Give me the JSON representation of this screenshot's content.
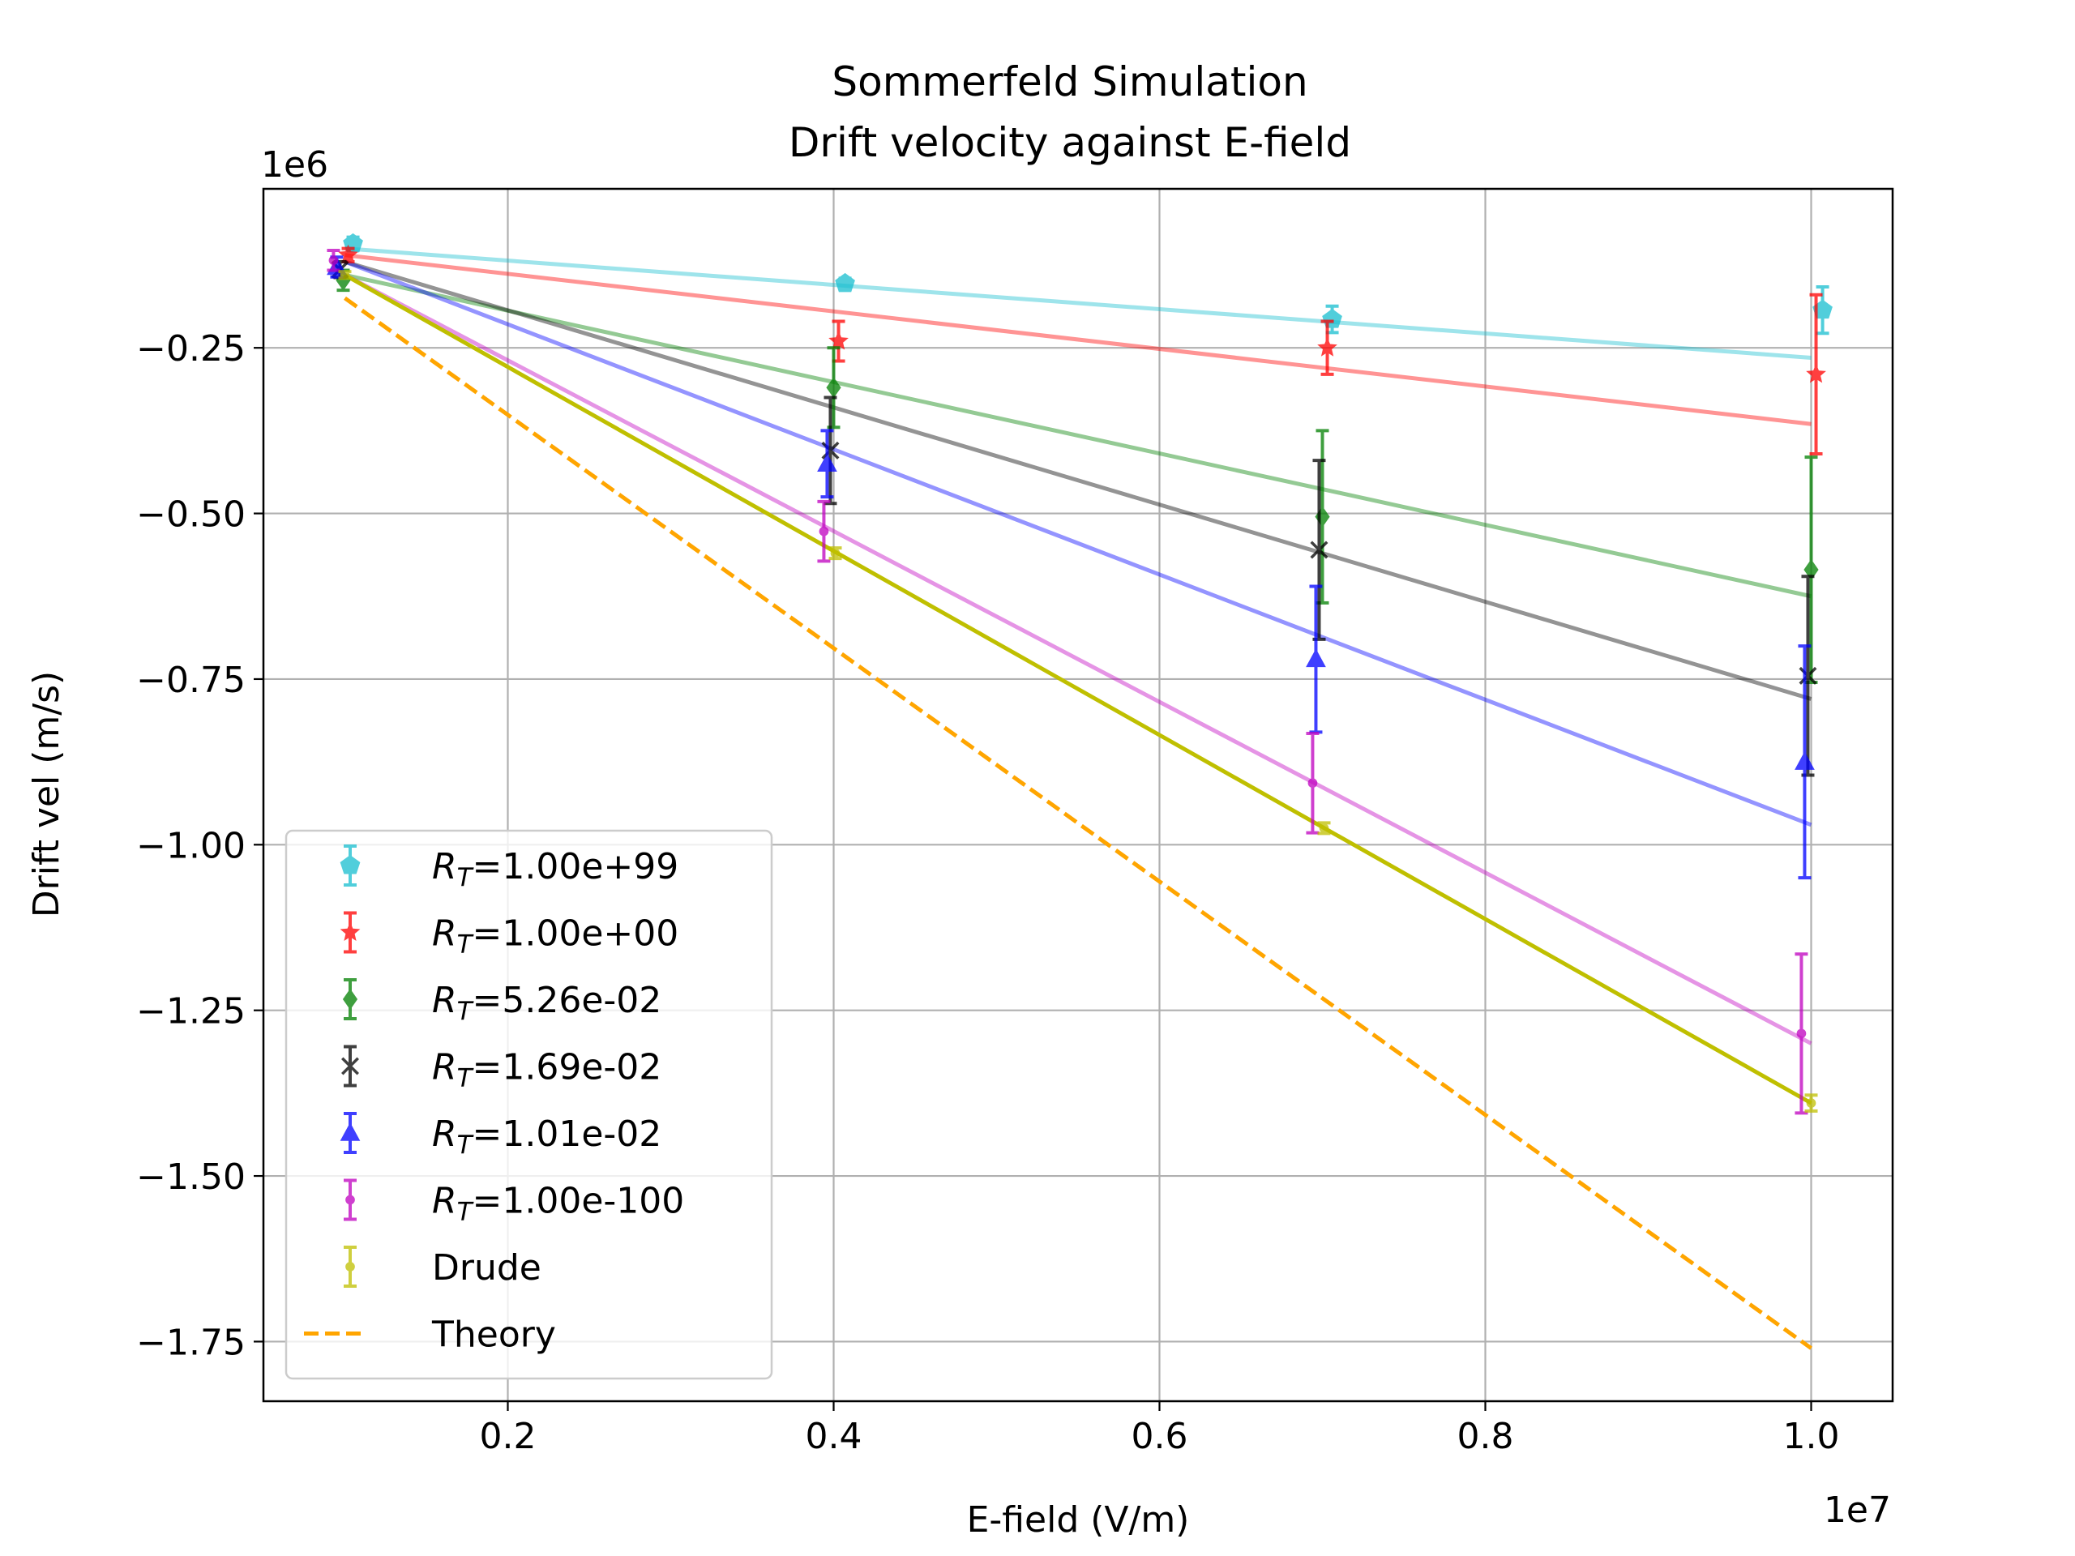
{
  "chart_data": {
    "type": "line",
    "title": "Sommerfeld Simulation",
    "subtitle": "Drift velocity against E-field",
    "xlabel": "E-field (V/m)",
    "ylabel": "Drift vel (m/s)",
    "x_offset_label": "1e7",
    "y_offset_label": "1e6",
    "xlim": [
      0.05,
      1.05
    ],
    "ylim": [
      -1.84,
      -0.01
    ],
    "x_scale": 10000000.0,
    "y_scale": 1000000.0,
    "x_ticks": [
      0.2,
      0.4,
      0.6,
      0.8,
      1.0
    ],
    "x_tick_labels": [
      "0.2",
      "0.4",
      "0.6",
      "0.8",
      "1.0"
    ],
    "y_ticks": [
      -0.25,
      -0.5,
      -0.75,
      -1.0,
      -1.25,
      -1.5,
      -1.75
    ],
    "y_tick_labels": [
      "−0.25",
      "−0.50",
      "−0.75",
      "−1.00",
      "−1.25",
      "−1.50",
      "−1.75"
    ],
    "grid": true,
    "legend_placement": "lower-left",
    "series": [
      {
        "name": "R_T=1.00e+99",
        "label_main": "R",
        "label_sub": "T",
        "label_rest": "=1.00e+99",
        "color": "#17becf",
        "marker": "pentagon",
        "x": [
          0.105,
          0.407,
          0.706,
          1.007
        ],
        "y": [
          -0.093,
          -0.153,
          -0.207,
          -0.193
        ],
        "err": [
          0.01,
          0.008,
          0.02,
          0.035
        ],
        "fit": [
          [
            0.1,
            -0.1
          ],
          [
            1.0,
            -0.265
          ]
        ]
      },
      {
        "name": "R_T=1.00e+00",
        "label_main": "R",
        "label_sub": "T",
        "label_rest": "=1.00e+00",
        "color": "#ff0000",
        "marker": "star",
        "x": [
          0.102,
          0.403,
          0.703,
          1.003
        ],
        "y": [
          -0.11,
          -0.24,
          -0.25,
          -0.29
        ],
        "err": [
          0.01,
          0.03,
          0.04,
          0.12
        ],
        "fit": [
          [
            0.1,
            -0.11
          ],
          [
            1.0,
            -0.365
          ]
        ]
      },
      {
        "name": "R_T=5.26e-02",
        "label_main": "R",
        "label_sub": "T",
        "label_rest": "=5.26e-02",
        "color": "#008000",
        "marker": "diamond",
        "x": [
          0.099,
          0.4,
          0.7,
          1.0
        ],
        "y": [
          -0.148,
          -0.31,
          -0.505,
          -0.585
        ],
        "err": [
          0.015,
          0.06,
          0.13,
          0.17
        ],
        "fit": [
          [
            0.1,
            -0.14
          ],
          [
            1.0,
            -0.625
          ]
        ]
      },
      {
        "name": "R_T=1.69e-02",
        "label_main": "R",
        "label_sub": "T",
        "label_rest": "=1.69e-02",
        "color": "#000000",
        "marker": "x",
        "x": [
          0.097,
          0.398,
          0.698,
          0.998
        ],
        "y": [
          -0.132,
          -0.405,
          -0.555,
          -0.745
        ],
        "err": [
          0.012,
          0.08,
          0.135,
          0.15
        ],
        "fit": [
          [
            0.1,
            -0.12
          ],
          [
            1.0,
            -0.78
          ]
        ]
      },
      {
        "name": "R_T=1.01e-02",
        "label_main": "R",
        "label_sub": "T",
        "label_rest": "=1.01e-02",
        "color": "#0000ff",
        "marker": "triangle",
        "x": [
          0.095,
          0.396,
          0.696,
          0.996
        ],
        "y": [
          -0.128,
          -0.425,
          -0.72,
          -0.875
        ],
        "err": [
          0.015,
          0.05,
          0.11,
          0.175
        ],
        "fit": [
          [
            0.1,
            -0.12
          ],
          [
            1.0,
            -0.97
          ]
        ]
      },
      {
        "name": "R_T=1.00e-100",
        "label_main": "R",
        "label_sub": "T",
        "label_rest": "=1.00e-100",
        "color": "#c000c0",
        "marker": "dot",
        "x": [
          0.093,
          0.394,
          0.694,
          0.994
        ],
        "y": [
          -0.118,
          -0.527,
          -0.907,
          -1.285
        ],
        "err": [
          0.015,
          0.045,
          0.075,
          0.12
        ],
        "fit": [
          [
            0.1,
            -0.14
          ],
          [
            1.0,
            -1.3
          ]
        ]
      },
      {
        "name": "Drude",
        "label_main": "Drude",
        "label_sub": "",
        "label_rest": "",
        "color": "#bfbf00",
        "marker": "dot",
        "x": [
          0.1,
          0.401,
          0.701,
          1.0
        ],
        "y": [
          -0.14,
          -0.56,
          -0.975,
          -1.39
        ],
        "err": [
          0.005,
          0.008,
          0.008,
          0.012
        ],
        "fit": [
          [
            0.1,
            -0.14
          ],
          [
            1.0,
            -1.39
          ]
        ]
      },
      {
        "name": "Theory",
        "label_main": "Theory",
        "label_sub": "",
        "label_rest": "",
        "color": "#ffa500",
        "marker": "none",
        "dashed": true,
        "x": [
          0.1,
          1.0
        ],
        "y": [
          -0.175,
          -1.76
        ]
      }
    ]
  }
}
